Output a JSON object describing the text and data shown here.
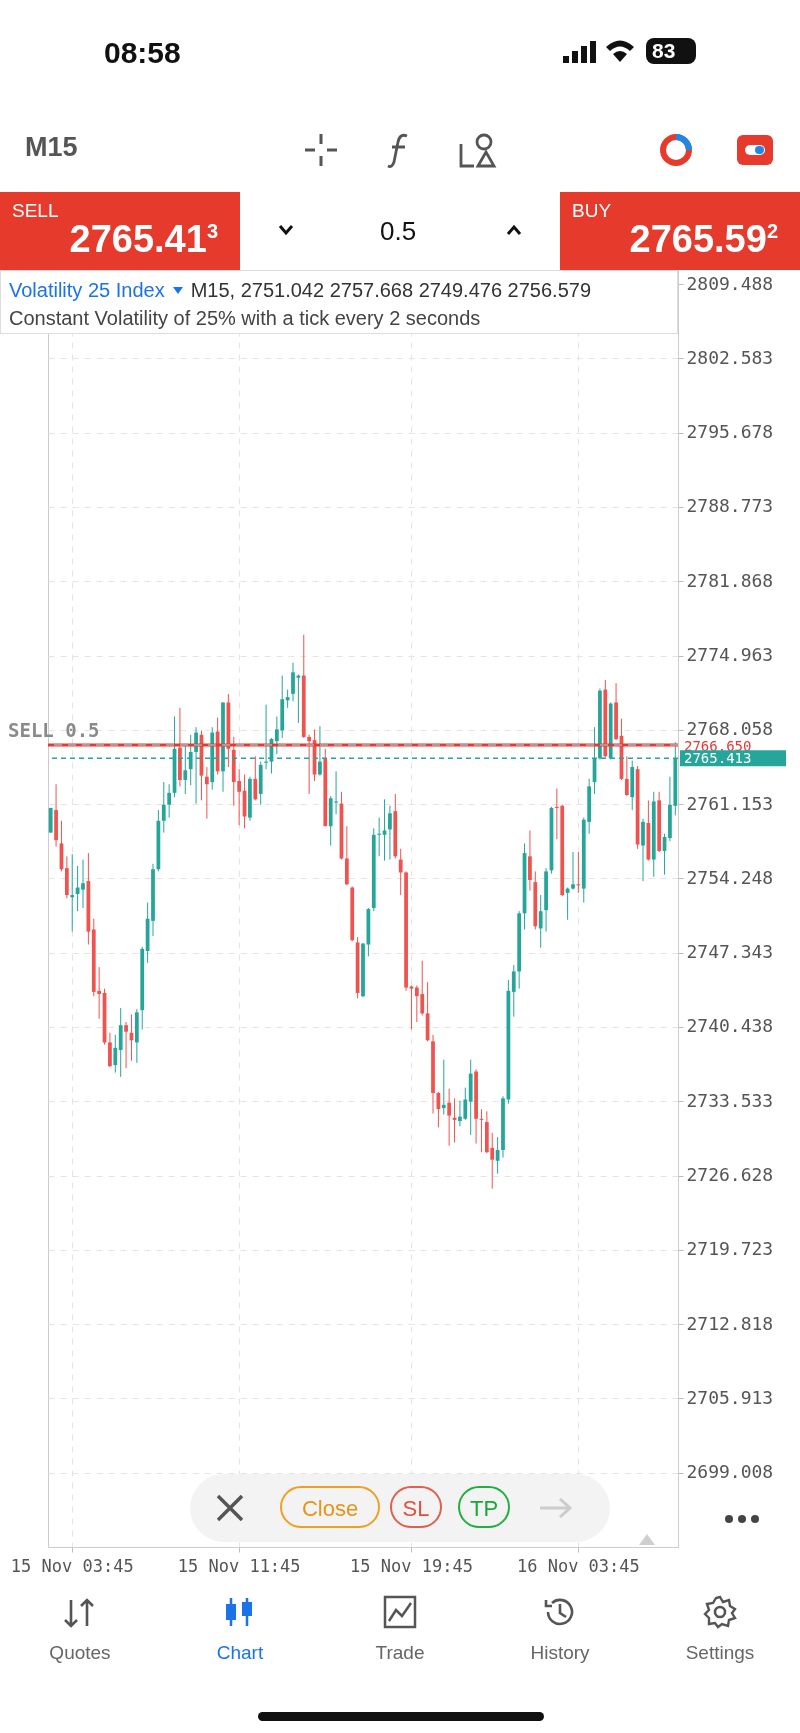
{
  "chart_data": {
    "type": "candlestick",
    "title": "Volatility 25 Index",
    "subtitle": "Constant Volatility of 25% with a tick every 2 seconds",
    "annotations": [
      "08:58",
      "83",
      "M15",
      "SELL",
      "2765.41$^{3}$",
      "0.5",
      "BUY",
      "2765.59$^{2}$",
      "M15, 2751.042 2757.668 2749.476 2756.579",
      "Close",
      "SL",
      "TP",
      "Quotes",
      "Chart",
      "Trade",
      "History",
      "Settings"
    ],
    "categories": [
      null,
      null,
      null,
      null,
      "15 Nov 03:45",
      null,
      null,
      null,
      null,
      null,
      null,
      null,
      null,
      null,
      null,
      null,
      null,
      null,
      null,
      null,
      null,
      null,
      null,
      null,
      null,
      null,
      null,
      null,
      null,
      null,
      null,
      null,
      null,
      null,
      null,
      "15 Nov 11:45",
      null,
      null,
      null,
      null,
      null,
      null,
      null,
      null,
      null,
      null,
      null,
      null,
      null,
      null,
      null,
      null,
      null,
      null,
      null,
      null,
      null,
      null,
      null,
      null,
      null,
      null,
      null,
      null,
      null,
      null,
      null,
      "15 Nov 19:45",
      null,
      null,
      null,
      null,
      null,
      null,
      null,
      null,
      null,
      null,
      null,
      null,
      null,
      null,
      null,
      null,
      null,
      null,
      null,
      null,
      null,
      null,
      null,
      null,
      null,
      null,
      null,
      null,
      null,
      null,
      "16 Nov 03:45",
      null,
      null,
      null,
      null,
      null,
      null,
      null,
      null,
      null,
      null,
      null,
      null,
      null,
      null,
      null,
      null,
      null,
      null
    ],
    "ohlc": [
      [
        2758.5,
        2760.8,
        2758.5,
        2760.8
      ],
      [
        2760.6,
        2763.0,
        2757.2,
        2757.8
      ],
      [
        2757.5,
        2759.6,
        2754.9,
        2755.1
      ],
      [
        2755.2,
        2756.3,
        2752.4,
        2752.7
      ],
      [
        2752.5,
        2756.5,
        2749.3,
        2752.7
      ],
      [
        2752.8,
        2755.4,
        2751.2,
        2753.4
      ],
      [
        2753.2,
        2756.0,
        2751.5,
        2753.8
      ],
      [
        2754.0,
        2756.6,
        2748.1,
        2749.3
      ],
      [
        2749.5,
        2750.5,
        2743.3,
        2743.7
      ],
      [
        2743.8,
        2746.0,
        2741.2,
        2743.5
      ],
      [
        2743.6,
        2744.0,
        2738.8,
        2739.0
      ],
      [
        2739.0,
        2739.9,
        2736.7,
        2736.8
      ],
      [
        2736.9,
        2739.7,
        2736.2,
        2738.5
      ],
      [
        2738.3,
        2742.2,
        2735.8,
        2740.6
      ],
      [
        2740.6,
        2740.9,
        2736.6,
        2740.0
      ],
      [
        2739.9,
        2741.6,
        2737.3,
        2739.2
      ],
      [
        2739.0,
        2742.1,
        2737.1,
        2741.8
      ],
      [
        2742.0,
        2747.9,
        2740.2,
        2747.7
      ],
      [
        2747.5,
        2752.0,
        2746.4,
        2750.5
      ],
      [
        2750.3,
        2755.6,
        2748.9,
        2755.1
      ],
      [
        2755.1,
        2760.6,
        2754.9,
        2759.6
      ],
      [
        2759.6,
        2763.2,
        2758.5,
        2761.1
      ],
      [
        2761.1,
        2763.0,
        2759.9,
        2762.2
      ],
      [
        2762.2,
        2769.3,
        2761.8,
        2766.3
      ],
      [
        2766.4,
        2770.1,
        2762.8,
        2763.4
      ],
      [
        2763.4,
        2766.6,
        2762.1,
        2764.3
      ],
      [
        2764.4,
        2767.6,
        2762.9,
        2766.0
      ],
      [
        2766.0,
        2768.3,
        2761.2,
        2767.8
      ],
      [
        2767.6,
        2768.0,
        2761.5,
        2763.8
      ],
      [
        2763.7,
        2764.6,
        2759.8,
        2763.0
      ],
      [
        2763.2,
        2768.3,
        2762.5,
        2767.8
      ],
      [
        2767.9,
        2769.2,
        2763.9,
        2764.2
      ],
      [
        2764.2,
        2770.6,
        2762.3,
        2770.6
      ],
      [
        2770.6,
        2771.4,
        2764.6,
        2766.3
      ],
      [
        2766.2,
        2767.4,
        2761.0,
        2763.2
      ],
      [
        2763.3,
        2764.4,
        2759.2,
        2762.3
      ],
      [
        2762.4,
        2763.9,
        2758.9,
        2760.0
      ],
      [
        2759.9,
        2763.7,
        2759.6,
        2763.5
      ],
      [
        2763.5,
        2765.6,
        2761.5,
        2761.6
      ],
      [
        2762.1,
        2765.1,
        2761.1,
        2764.8
      ],
      [
        2765.0,
        2770.4,
        2764.4,
        2765.1
      ],
      [
        2765.1,
        2767.3,
        2764.0,
        2767.2
      ],
      [
        2767.0,
        2769.3,
        2765.8,
        2768.1
      ],
      [
        2768.0,
        2773.1,
        2767.3,
        2770.9
      ],
      [
        2770.8,
        2771.8,
        2770.1,
        2771.1
      ],
      [
        2771.4,
        2774.3,
        2770.7,
        2773.4
      ],
      [
        2772.9,
        2773.2,
        2768.7,
        2773.1
      ],
      [
        2773.1,
        2776.9,
        2767.3,
        2767.4
      ],
      [
        2767.4,
        2767.6,
        2762.1,
        2767.0
      ],
      [
        2767.1,
        2768.1,
        2763.3,
        2763.9
      ],
      [
        2763.9,
        2768.4,
        2763.8,
        2765.1
      ],
      [
        2765.4,
        2766.3,
        2759.1,
        2759.1
      ],
      [
        2759.1,
        2761.9,
        2757.3,
        2761.7
      ],
      [
        2761.3,
        2764.2,
        2760.2,
        2761.4
      ],
      [
        2761.2,
        2762.3,
        2756.0,
        2756.1
      ],
      [
        2756.1,
        2759.1,
        2753.6,
        2753.7
      ],
      [
        2753.4,
        2753.5,
        2748.4,
        2748.5
      ],
      [
        2748.3,
        2748.8,
        2743.1,
        2743.6
      ],
      [
        2743.3,
        2748.2,
        2743.2,
        2748.2
      ],
      [
        2748.1,
        2751.5,
        2747.0,
        2751.4
      ],
      [
        2751.5,
        2758.9,
        2751.2,
        2758.3
      ],
      [
        2758.3,
        2759.9,
        2756.3,
        2758.4
      ],
      [
        2758.3,
        2761.6,
        2755.9,
        2758.7
      ],
      [
        2758.8,
        2761.0,
        2756.0,
        2760.3
      ],
      [
        2760.5,
        2762.1,
        2756.1,
        2756.3
      ],
      [
        2756.0,
        2757.0,
        2752.7,
        2754.8
      ],
      [
        2754.8,
        2754.9,
        2743.8,
        2744.1
      ],
      [
        2744.2,
        2744.3,
        2740.2,
        2744.0
      ],
      [
        2744.1,
        2744.3,
        2740.9,
        2743.3
      ],
      [
        2743.5,
        2746.6,
        2741.5,
        2741.7
      ],
      [
        2741.7,
        2744.6,
        2739.1,
        2739.2
      ],
      [
        2739.1,
        2739.7,
        2732.4,
        2734.3
      ],
      [
        2734.3,
        2734.4,
        2731.1,
        2732.8
      ],
      [
        2732.9,
        2737.4,
        2732.3,
        2733.2
      ],
      [
        2733.4,
        2734.7,
        2729.4,
        2732.2
      ],
      [
        2732.0,
        2733.8,
        2729.7,
        2731.8
      ],
      [
        2731.7,
        2733.6,
        2731.2,
        2732.1
      ],
      [
        2731.9,
        2734.8,
        2731.8,
        2733.7
      ],
      [
        2733.5,
        2737.4,
        2730.4,
        2736.1
      ],
      [
        2736.3,
        2736.5,
        2729.6,
        2731.9
      ],
      [
        2731.9,
        2732.8,
        2728.8,
        2731.8
      ],
      [
        2731.6,
        2732.6,
        2728.7,
        2728.8
      ],
      [
        2729.2,
        2730.6,
        2725.4,
        2728.1
      ],
      [
        2728.0,
        2730.2,
        2726.8,
        2729.0
      ],
      [
        2729.0,
        2734.0,
        2728.3,
        2733.8
      ],
      [
        2733.7,
        2744.8,
        2733.3,
        2743.8
      ],
      [
        2743.7,
        2746.2,
        2741.4,
        2745.6
      ],
      [
        2745.6,
        2751.2,
        2744.0,
        2751.0
      ],
      [
        2751.0,
        2757.5,
        2749.5,
        2756.6
      ],
      [
        2756.3,
        2758.7,
        2753.1,
        2754.1
      ],
      [
        2753.9,
        2754.9,
        2749.5,
        2749.8
      ],
      [
        2749.6,
        2752.7,
        2747.8,
        2751.2
      ],
      [
        2751.3,
        2755.2,
        2749.3,
        2754.9
      ],
      [
        2755.0,
        2760.9,
        2754.7,
        2760.8
      ],
      [
        2760.9,
        2762.6,
        2757.9,
        2760.8
      ],
      [
        2761.0,
        2761.1,
        2752.6,
        2752.7
      ],
      [
        2752.9,
        2753.4,
        2750.4,
        2753.3
      ],
      [
        2753.3,
        2756.7,
        2753.2,
        2753.7
      ],
      [
        2753.7,
        2756.7,
        2752.9,
        2753.6
      ],
      [
        2753.3,
        2759.9,
        2752.0,
        2759.7
      ],
      [
        2759.5,
        2763.5,
        2758.4,
        2762.8
      ],
      [
        2763.2,
        2768.3,
        2762.1,
        2765.4
      ],
      [
        2765.4,
        2771.9,
        2765.3,
        2771.7
      ],
      [
        2771.8,
        2772.7,
        2765.5,
        2765.6
      ],
      [
        2765.4,
        2770.6,
        2765.3,
        2770.5
      ],
      [
        2770.6,
        2772.4,
        2767.1,
        2767.2
      ],
      [
        2767.5,
        2769.1,
        2763.4,
        2763.5
      ],
      [
        2763.5,
        2765.6,
        2761.9,
        2762.0
      ],
      [
        2761.8,
        2765.2,
        2760.6,
        2764.6
      ],
      [
        2764.4,
        2764.7,
        2757.0,
        2757.4
      ],
      [
        2757.3,
        2759.8,
        2754.0,
        2759.5
      ],
      [
        2759.4,
        2761.5,
        2755.9,
        2756.0
      ],
      [
        2756.0,
        2762.3,
        2754.4,
        2761.4
      ],
      [
        2761.5,
        2762.3,
        2756.7,
        2756.8
      ],
      [
        2756.8,
        2758.4,
        2754.6,
        2758.1
      ],
      [
        2758.0,
        2763.7,
        2757.7,
        2761.1
      ],
      [
        2761.0,
        2766.9,
        2760.1,
        2765.4
      ]
    ],
    "colors": [
      "#26a69a",
      "#ef5350",
      "#ef5350",
      "#ef5350",
      "#26a69a",
      "#26a69a",
      "#26a69a",
      "#ef5350",
      "#ef5350",
      "#ef5350",
      "#ef5350",
      "#ef5350",
      "#26a69a",
      "#26a69a",
      "#ef5350",
      "#ef5350",
      "#26a69a",
      "#26a69a",
      "#26a69a",
      "#26a69a",
      "#26a69a",
      "#26a69a",
      "#26a69a",
      "#26a69a",
      "#ef5350",
      "#26a69a",
      "#26a69a",
      "#26a69a",
      "#ef5350",
      "#ef5350",
      "#26a69a",
      "#ef5350",
      "#26a69a",
      "#ef5350",
      "#ef5350",
      "#ef5350",
      "#ef5350",
      "#26a69a",
      "#ef5350",
      "#26a69a",
      "#26a69a",
      "#26a69a",
      "#26a69a",
      "#26a69a",
      "#26a69a",
      "#26a69a",
      "#26a69a",
      "#ef5350",
      "#ef5350",
      "#ef5350",
      "#26a69a",
      "#ef5350",
      "#26a69a",
      "#26a69a",
      "#ef5350",
      "#ef5350",
      "#ef5350",
      "#ef5350",
      "#26a69a",
      "#26a69a",
      "#26a69a",
      "#26a69a",
      "#26a69a",
      "#26a69a",
      "#ef5350",
      "#ef5350",
      "#ef5350",
      "#ef5350",
      "#ef5350",
      "#ef5350",
      "#ef5350",
      "#ef5350",
      "#ef5350",
      "#26a69a",
      "#ef5350",
      "#ef5350",
      "#26a69a",
      "#26a69a",
      "#26a69a",
      "#ef5350",
      "#ef5350",
      "#ef5350",
      "#ef5350",
      "#26a69a",
      "#26a69a",
      "#26a69a",
      "#26a69a",
      "#26a69a",
      "#26a69a",
      "#ef5350",
      "#ef5350",
      "#26a69a",
      "#26a69a",
      "#26a69a",
      "#ef5350",
      "#ef5350",
      "#26a69a",
      "#26a69a",
      "#ef5350",
      "#26a69a",
      "#26a69a",
      "#26a69a",
      "#26a69a",
      "#ef5350",
      "#26a69a",
      "#ef5350",
      "#ef5350",
      "#ef5350",
      "#26a69a",
      "#ef5350",
      "#26a69a",
      "#ef5350",
      "#26a69a",
      "#ef5350",
      "#26a69a",
      "#26a69a",
      "#26a69a"
    ],
    "ylim": [
      2692.1,
      2810.8
    ],
    "yticks": [
      2809.488,
      2802.583,
      2795.678,
      2788.773,
      2781.868,
      2774.963,
      2768.058,
      2761.153,
      2754.248,
      2747.343,
      2740.438,
      2733.533,
      2726.628,
      2719.723,
      2712.818,
      2705.913,
      2699.008
    ],
    "ref_lines": [
      {
        "axis": "y",
        "value": 2766.65,
        "label": "SELL 0.5",
        "color": "#b0b0b0",
        "line_style": "dashed"
      },
      {
        "axis": "y",
        "value": 2766.65,
        "label": "2766.650",
        "color": "#e53935",
        "line_style": "solid"
      },
      {
        "axis": "y",
        "value": 2765.413,
        "label": "2765.413",
        "color": "#26a69a",
        "line_style": "dotted"
      }
    ],
    "grid": true
  }
}
